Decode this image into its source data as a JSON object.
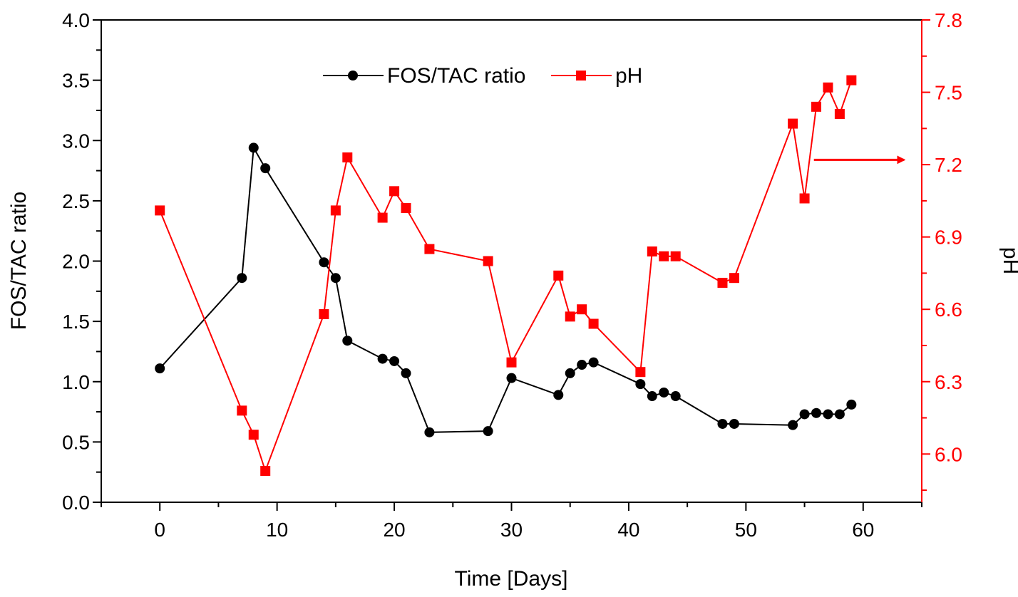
{
  "chart_data": {
    "type": "line",
    "xlabel": "Time [Days]",
    "ylabel_left": "FOS/TAC ratio",
    "ylabel_right": "pH",
    "xlim": [
      -5,
      65
    ],
    "ylim_left": [
      0.0,
      4.0
    ],
    "ylim_right": [
      5.8,
      7.8
    ],
    "x_ticks": [
      "0",
      "10",
      "20",
      "30",
      "40",
      "50",
      "60"
    ],
    "y_left_ticks": [
      "0.0",
      "0.5",
      "1.0",
      "1.5",
      "2.0",
      "2.5",
      "3.0",
      "3.5",
      "4.0"
    ],
    "y_right_ticks": [
      "6.0",
      "6.3",
      "6.6",
      "6.9",
      "7.2",
      "7.5",
      "7.8"
    ],
    "legend_position": "top-center",
    "grid": false,
    "series": [
      {
        "name": "FOS/TAC ratio",
        "axis": "left",
        "color": "#000000",
        "marker": "circle",
        "x": [
          0,
          7,
          8,
          9,
          14,
          15,
          16,
          19,
          20,
          21,
          23,
          28,
          30,
          34,
          35,
          36,
          37,
          41,
          42,
          43,
          44,
          48,
          49,
          54,
          55,
          56,
          57,
          58,
          59
        ],
        "y": [
          1.11,
          1.86,
          2.94,
          2.77,
          1.99,
          1.86,
          1.34,
          1.19,
          1.17,
          1.07,
          0.58,
          0.59,
          1.03,
          0.89,
          1.07,
          1.14,
          1.16,
          0.98,
          0.88,
          0.91,
          0.88,
          0.65,
          0.65,
          0.64,
          0.73,
          0.74,
          0.73,
          0.73,
          0.81
        ]
      },
      {
        "name": "pH",
        "axis": "right",
        "color": "#ff0000",
        "marker": "square",
        "x": [
          0,
          7,
          8,
          9,
          14,
          15,
          16,
          19,
          20,
          21,
          23,
          28,
          30,
          34,
          35,
          36,
          37,
          41,
          42,
          43,
          44,
          48,
          49,
          54,
          55,
          56,
          57,
          58,
          59
        ],
        "y": [
          7.01,
          6.18,
          6.08,
          5.93,
          6.58,
          7.01,
          7.23,
          6.98,
          7.09,
          7.02,
          6.85,
          6.8,
          6.38,
          6.74,
          6.57,
          6.6,
          6.54,
          6.34,
          6.84,
          6.82,
          6.82,
          6.71,
          6.73,
          7.37,
          7.06,
          7.44,
          7.52,
          7.41,
          7.55
        ]
      }
    ],
    "annotations": [
      {
        "type": "arrow",
        "color": "#ff0000",
        "from": [
          55.8,
          7.22
        ],
        "to": [
          63.5,
          7.22
        ]
      }
    ]
  }
}
